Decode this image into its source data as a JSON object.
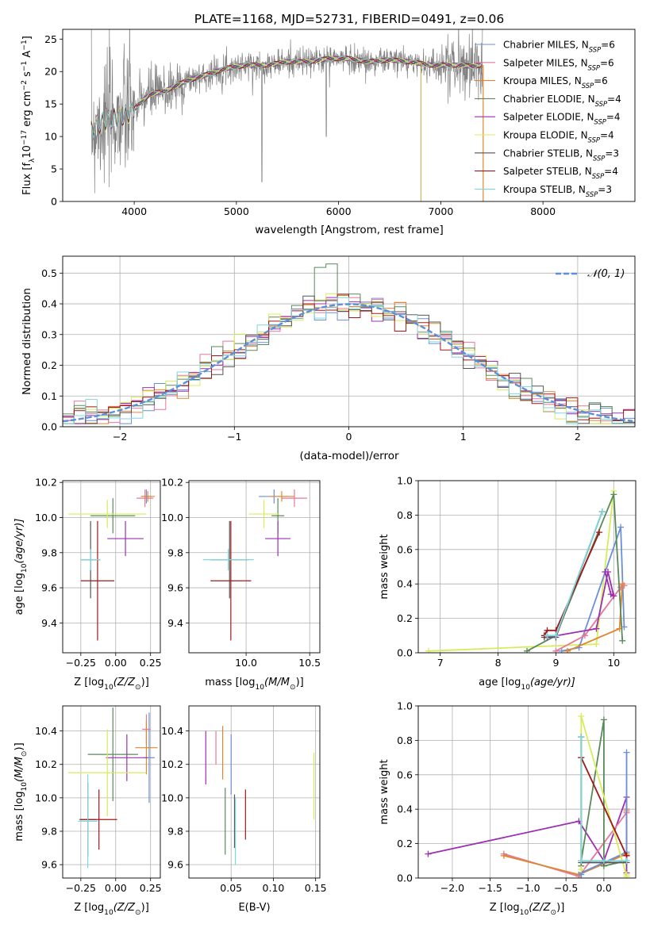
{
  "colors": {
    "Chabrier MILES": "#6a8fd8",
    "Salpeter MILES": "#e5789a",
    "Kroupa MILES": "#e0862e",
    "Chabrier ELODIE": "#5a8a5a",
    "Salpeter ELODIE": "#9b30b0",
    "Kroupa ELODIE": "#d8ec5a",
    "Chabrier STELIB": "#555555",
    "Salpeter STELIB": "#a01818",
    "Kroupa STELIB": "#7fd6dc",
    "data": "#808080",
    "gauss": "#5b8fd9",
    "axes_bg": "#ffffff",
    "grid": "#b0b0b0"
  },
  "chart_data": [
    {
      "id": "spectrum",
      "type": "line",
      "title": "PLATE=1168, MJD=52731, FIBERID=0491, z=0.06",
      "xlabel": "wavelength [Angstrom, rest frame]",
      "ylabel": "Flux [f",
      "ylabel_sub": "λ",
      "ylabel_rest": "10",
      "ylabel_sup1": "−17",
      "ylabel_tail": " erg cm",
      "ylabel_sup2": "−2",
      "ylabel_tail2": " s",
      "ylabel_sup3": "−1",
      "ylabel_tail3": " A",
      "ylabel_sup4": "−1",
      "ylabel_end": "]",
      "xlim": [
        3300,
        8900
      ],
      "ylim": [
        0,
        26.5
      ],
      "xticks": [
        4000,
        5000,
        6000,
        7000,
        8000
      ],
      "yticks": [
        0,
        5,
        10,
        15,
        20,
        25
      ],
      "grid": false,
      "legend_position": "right",
      "legend": [
        {
          "name": "Chabrier MILES",
          "n": "6"
        },
        {
          "name": "Salpeter MILES",
          "n": "6"
        },
        {
          "name": "Kroupa MILES",
          "n": "6"
        },
        {
          "name": "Chabrier ELODIE",
          "n": "4"
        },
        {
          "name": "Salpeter ELODIE",
          "n": "4"
        },
        {
          "name": "Kroupa ELODIE",
          "n": "4"
        },
        {
          "name": "Chabrier STELIB",
          "n": "3"
        },
        {
          "name": "Salpeter STELIB",
          "n": "4"
        },
        {
          "name": "Kroupa STELIB",
          "n": "3"
        }
      ],
      "legend_n_label": "N",
      "legend_n_sub": "SSP",
      "continuum": [
        [
          3580,
          11
        ],
        [
          3650,
          12
        ],
        [
          3750,
          12.5
        ],
        [
          3850,
          13
        ],
        [
          3950,
          13.5
        ],
        [
          4050,
          15
        ],
        [
          4150,
          16.5
        ],
        [
          4300,
          17
        ],
        [
          4500,
          18.5
        ],
        [
          4700,
          19.5
        ],
        [
          4900,
          20.5
        ],
        [
          5100,
          21
        ],
        [
          5300,
          21
        ],
        [
          5500,
          21.5
        ],
        [
          5700,
          21.5
        ],
        [
          5900,
          22
        ],
        [
          6100,
          22
        ],
        [
          6300,
          21.5
        ],
        [
          6500,
          21.8
        ],
        [
          6700,
          21.5
        ],
        [
          6900,
          21
        ],
        [
          7050,
          21
        ],
        [
          7200,
          21
        ],
        [
          7300,
          20.8
        ],
        [
          7400,
          21
        ]
      ]
    },
    {
      "id": "residuals",
      "type": "line",
      "xlabel": "(data-model)/error",
      "ylabel": "Normed distribution",
      "xlim": [
        -2.5,
        2.5
      ],
      "ylim": [
        0,
        0.555
      ],
      "xticks": [
        -2,
        -1,
        0,
        1,
        2
      ],
      "xtick_labels": [
        "−2",
        "−1",
        "0",
        "1",
        "2"
      ],
      "yticks": [
        0.0,
        0.1,
        0.2,
        0.3,
        0.4,
        0.5
      ],
      "ytick_labels": [
        "0.0",
        "0.1",
        "0.2",
        "0.3",
        "0.4",
        "0.5"
      ],
      "grid": true,
      "legend_label": "𝒩(0, 1)",
      "legend_position": "top-right",
      "bin_width": 0.1,
      "gaussian": {
        "mean": 0,
        "sigma": 1
      }
    },
    {
      "id": "age_vs_Z",
      "type": "scatter",
      "xlabel": "Z [log",
      "xlabel_sub": "10",
      "xlabel_rest": "(Z/Z",
      "xlabel_sub2": "⊙",
      "xlabel_end": ")]",
      "ylabel": "age  [log",
      "ylabel_sub": "10",
      "ylabel_rest": "(age/yr)]",
      "xlim": [
        -0.38,
        0.32
      ],
      "ylim": [
        9.23,
        10.21
      ],
      "xticks": [
        -0.25,
        0.0,
        0.25
      ],
      "xtick_labels": [
        "−0.25",
        "0.00",
        "0.25"
      ],
      "yticks": [
        9.4,
        9.6,
        9.8,
        10.0,
        10.2
      ],
      "ytick_labels": [
        "9.4",
        "9.6",
        "9.8",
        "10.0",
        "10.2"
      ],
      "grid": true,
      "points": [
        {
          "model": "Chabrier MILES",
          "x": 0.22,
          "xerr": 0.03,
          "y": 10.12,
          "yerr": 0.04
        },
        {
          "model": "Salpeter MILES",
          "x": 0.21,
          "xerr": 0.06,
          "y": 10.11,
          "yerr": 0.05
        },
        {
          "model": "Kroupa MILES",
          "x": 0.23,
          "xerr": 0.05,
          "y": 10.12,
          "yerr": 0.03
        },
        {
          "model": "Chabrier ELODIE",
          "x": -0.02,
          "xerr": 0.16,
          "y": 10.01,
          "yerr": 0.1
        },
        {
          "model": "Salpeter ELODIE",
          "x": 0.07,
          "xerr": 0.13,
          "y": 9.88,
          "yerr": 0.1
        },
        {
          "model": "Kroupa ELODIE",
          "x": -0.06,
          "xerr": 0.28,
          "y": 10.02,
          "yerr": 0.08
        },
        {
          "model": "Chabrier STELIB",
          "x": -0.18,
          "xerr": 0.07,
          "y": 9.76,
          "yerr": 0.22
        },
        {
          "model": "Salpeter STELIB",
          "x": -0.13,
          "xerr": 0.12,
          "y": 9.64,
          "yerr": 0.34
        },
        {
          "model": "Kroupa STELIB",
          "x": -0.18,
          "xerr": 0.07,
          "y": 9.76,
          "yerr": 0.06
        }
      ]
    },
    {
      "id": "age_vs_mass",
      "type": "scatter",
      "xlabel": "mass [log",
      "xlabel_sub": "10",
      "xlabel_rest": "(M/M",
      "xlabel_sub2": "⊙",
      "xlabel_end": ")]",
      "xlim": [
        9.55,
        10.58
      ],
      "ylim": [
        9.23,
        10.21
      ],
      "xticks": [
        10.0,
        10.5
      ],
      "xtick_labels": [
        "10.0",
        "10.5"
      ],
      "yticks": [
        9.4,
        9.6,
        9.8,
        10.0,
        10.2
      ],
      "ytick_labels": [
        "9.4",
        "9.6",
        "9.8",
        "10.0",
        "10.2"
      ],
      "grid": true,
      "points": [
        {
          "model": "Chabrier MILES",
          "x": 10.22,
          "xerr": 0.12,
          "y": 10.12,
          "yerr": 0.04
        },
        {
          "model": "Salpeter MILES",
          "x": 10.38,
          "xerr": 0.1,
          "y": 10.11,
          "yerr": 0.05
        },
        {
          "model": "Kroupa MILES",
          "x": 10.28,
          "xerr": 0.1,
          "y": 10.12,
          "yerr": 0.03
        },
        {
          "model": "Chabrier ELODIE",
          "x": 10.25,
          "xerr": 0.05,
          "y": 10.01,
          "yerr": 0.1
        },
        {
          "model": "Salpeter ELODIE",
          "x": 10.25,
          "xerr": 0.1,
          "y": 9.88,
          "yerr": 0.1
        },
        {
          "model": "Kroupa ELODIE",
          "x": 10.14,
          "xerr": 0.12,
          "y": 10.02,
          "yerr": 0.08
        },
        {
          "model": "Chabrier STELIB",
          "x": 9.87,
          "xerr": 0.15,
          "y": 9.76,
          "yerr": 0.22
        },
        {
          "model": "Salpeter STELIB",
          "x": 9.88,
          "xerr": 0.16,
          "y": 9.64,
          "yerr": 0.34
        },
        {
          "model": "Kroupa STELIB",
          "x": 9.86,
          "xerr": 0.2,
          "y": 9.76,
          "yerr": 0.06
        }
      ]
    },
    {
      "id": "weight_vs_age",
      "type": "line",
      "xlabel": "age  [log",
      "xlabel_sub": "10",
      "xlabel_rest": "(age/yr)]",
      "ylabel": "mass weight",
      "xlim": [
        6.62,
        10.38
      ],
      "ylim": [
        0,
        1.0
      ],
      "xticks": [
        7,
        8,
        9,
        10
      ],
      "xtick_labels": [
        "7",
        "8",
        "9",
        "10"
      ],
      "yticks": [
        0.0,
        0.2,
        0.4,
        0.6,
        0.8,
        1.0
      ],
      "ytick_labels": [
        "0.0",
        "0.2",
        "0.4",
        "0.6",
        "0.8",
        "1.0"
      ],
      "grid": true,
      "series": [
        {
          "model": "Kroupa ELODIE",
          "x": [
            6.8,
            9.7,
            10.0
          ],
          "y": [
            0.01,
            0.05,
            0.94
          ]
        },
        {
          "model": "Chabrier MILES",
          "x": [
            9.1,
            9.4,
            10.12,
            10.18
          ],
          "y": [
            0.01,
            0.03,
            0.73,
            0.15
          ]
        },
        {
          "model": "Salpeter MILES",
          "x": [
            9.0,
            9.5,
            10.12,
            10.18
          ],
          "y": [
            0.01,
            0.1,
            0.38,
            0.39
          ]
        },
        {
          "model": "Kroupa MILES",
          "x": [
            9.2,
            10.1,
            10.15
          ],
          "y": [
            0.01,
            0.14,
            0.4
          ]
        },
        {
          "model": "Chabrier ELODIE",
          "x": [
            8.5,
            9.0,
            10.0,
            10.15
          ],
          "y": [
            0.01,
            0.1,
            0.92,
            0.07
          ]
        },
        {
          "model": "Salpeter ELODIE",
          "x": [
            8.85,
            9.7,
            9.9,
            10.0,
            9.95,
            9.85
          ],
          "y": [
            0.09,
            0.14,
            0.47,
            0.33,
            0.34,
            0.47
          ]
        },
        {
          "model": "Chabrier STELIB",
          "x": [
            8.8,
            9.0,
            9.8
          ],
          "y": [
            0.09,
            0.09,
            0.82
          ]
        },
        {
          "model": "Salpeter STELIB",
          "x": [
            8.8,
            8.85,
            9.0,
            9.75
          ],
          "y": [
            0.1,
            0.13,
            0.13,
            0.7
          ]
        },
        {
          "model": "Kroupa STELIB",
          "x": [
            8.85,
            9.0,
            9.8
          ],
          "y": [
            0.1,
            0.1,
            0.82
          ]
        }
      ]
    },
    {
      "id": "mass_vs_Z",
      "type": "scatter",
      "xlabel": "Z [log",
      "xlabel_sub": "10",
      "xlabel_rest": "(Z/Z",
      "xlabel_sub2": "⊙",
      "xlabel_end": ")]",
      "ylabel": "mass [log",
      "ylabel_sub": "10",
      "ylabel_rest": "(M/M",
      "ylabel_sub2": "⊙",
      "ylabel_end": ")]",
      "xlim": [
        -0.38,
        0.32
      ],
      "ylim": [
        9.52,
        10.55
      ],
      "xticks": [
        -0.25,
        0.0,
        0.25
      ],
      "xtick_labels": [
        "−0.25",
        "0.00",
        "0.25"
      ],
      "yticks": [
        9.6,
        9.8,
        10.0,
        10.2,
        10.4
      ],
      "ytick_labels": [
        "9.6",
        "9.8",
        "10.0",
        "10.2",
        "10.4"
      ],
      "grid": true,
      "points": [
        {
          "model": "Chabrier MILES",
          "x": 0.24,
          "xerr": 0.04,
          "y": 10.24,
          "yerr": 0.27
        },
        {
          "model": "Salpeter MILES",
          "x": 0.22,
          "xerr": 0.03,
          "y": 10.41,
          "yerr": 0.09
        },
        {
          "model": "Kroupa MILES",
          "x": 0.22,
          "xerr": 0.08,
          "y": 10.3,
          "yerr": 0.16
        },
        {
          "model": "Chabrier ELODIE",
          "x": -0.02,
          "xerr": 0.18,
          "y": 10.26,
          "yerr": 0.28
        },
        {
          "model": "Salpeter ELODIE",
          "x": 0.08,
          "xerr": 0.15,
          "y": 10.24,
          "yerr": 0.14
        },
        {
          "model": "Kroupa ELODIE",
          "x": -0.06,
          "xerr": 0.28,
          "y": 10.15,
          "yerr": 0.26
        },
        {
          "model": "Chabrier STELIB",
          "x": -0.2,
          "xerr": 0.06,
          "y": 9.87,
          "yerr": 0.22
        },
        {
          "model": "Salpeter STELIB",
          "x": -0.12,
          "xerr": 0.13,
          "y": 9.87,
          "yerr": 0.18
        },
        {
          "model": "Kroupa STELIB",
          "x": -0.2,
          "xerr": 0.07,
          "y": 9.86,
          "yerr": 0.28
        }
      ]
    },
    {
      "id": "mass_vs_ebv",
      "type": "scatter",
      "xlabel": "E(B-V)",
      "xlim": [
        0.0,
        0.155
      ],
      "ylim": [
        9.52,
        10.55
      ],
      "xticks": [
        0.05,
        0.1,
        0.15
      ],
      "xtick_labels": [
        "0.05",
        "0.10",
        "0.15"
      ],
      "yticks": [
        9.6,
        9.8,
        10.0,
        10.2,
        10.4
      ],
      "ytick_labels": [
        "9.6",
        "9.8",
        "10.0",
        "10.2",
        "10.4"
      ],
      "grid": true,
      "points": [
        {
          "model": "Salpeter ELODIE",
          "x": 0.02,
          "y": 10.24,
          "yerr": 0.16
        },
        {
          "model": "Salpeter MILES",
          "x": 0.032,
          "y": 10.3,
          "yerr": 0.1
        },
        {
          "model": "Kroupa MILES",
          "x": 0.04,
          "y": 10.27,
          "yerr": 0.16
        },
        {
          "model": "Chabrier ELODIE",
          "x": 0.043,
          "y": 9.86,
          "yerr": 0.2
        },
        {
          "model": "Chabrier MILES",
          "x": 0.05,
          "y": 10.2,
          "yerr": 0.18
        },
        {
          "model": "Chabrier STELIB",
          "x": 0.054,
          "y": 9.86,
          "yerr": 0.16
        },
        {
          "model": "Kroupa STELIB",
          "x": 0.055,
          "y": 9.8,
          "yerr": 0.2
        },
        {
          "model": "Salpeter STELIB",
          "x": 0.067,
          "y": 9.9,
          "yerr": 0.15
        },
        {
          "model": "Kroupa ELODIE",
          "x": 0.148,
          "y": 10.07,
          "yerr": 0.2
        }
      ]
    },
    {
      "id": "weight_vs_Z",
      "type": "line",
      "xlabel": "Z [log",
      "xlabel_sub": "10",
      "xlabel_rest": "(Z/Z",
      "xlabel_sub2": "⊙",
      "xlabel_end": ")]",
      "ylabel": "mass weight",
      "xlim": [
        -2.45,
        0.42
      ],
      "ylim": [
        0,
        1.0
      ],
      "xticks": [
        -2.0,
        -1.5,
        -1.0,
        -0.5,
        0.0
      ],
      "xtick_labels": [
        "−2.0",
        "−1.5",
        "−1.0",
        "−0.5",
        "0.0"
      ],
      "yticks": [
        0.0,
        0.2,
        0.4,
        0.6,
        0.8,
        1.0
      ],
      "ytick_labels": [
        "0.0",
        "0.2",
        "0.4",
        "0.6",
        "0.8",
        "1.0"
      ],
      "grid": true,
      "series": [
        {
          "model": "Salpeter ELODIE",
          "x": [
            -2.32,
            -0.33,
            0.0,
            0.3,
            0.3
          ],
          "y": [
            0.14,
            0.33,
            0.1,
            0.47,
            0.03
          ]
        },
        {
          "model": "Salpeter MILES",
          "x": [
            -1.32,
            -0.33,
            0.3,
            0.3
          ],
          "y": [
            0.14,
            0.01,
            0.38,
            0.39
          ]
        },
        {
          "model": "Kroupa MILES",
          "x": [
            -1.32,
            -0.33,
            0.3,
            0.3
          ],
          "y": [
            0.13,
            0.02,
            0.14,
            0.4
          ]
        },
        {
          "model": "Chabrier MILES",
          "x": [
            -0.3,
            -0.3,
            0.3,
            0.3
          ],
          "y": [
            0.02,
            0.03,
            0.15,
            0.73
          ]
        },
        {
          "model": "Chabrier ELODIE",
          "x": [
            -0.3,
            -0.3,
            0.0,
            0.0,
            0.3
          ],
          "y": [
            0.07,
            0.1,
            0.92,
            0.07,
            0.1
          ]
        },
        {
          "model": "Kroupa ELODIE",
          "x": [
            -0.3,
            -0.3,
            0.3,
            0.3
          ],
          "y": [
            0.05,
            0.94,
            0.01,
            0.02
          ]
        },
        {
          "model": "Chabrier STELIB",
          "x": [
            -0.3,
            -0.3,
            0.0,
            0.3
          ],
          "y": [
            0.82,
            0.09,
            0.09,
            0.09
          ]
        },
        {
          "model": "Salpeter STELIB",
          "x": [
            -0.3,
            -0.3,
            0.3,
            0.3
          ],
          "y": [
            0.7,
            0.7,
            0.13,
            0.13
          ]
        },
        {
          "model": "Kroupa STELIB",
          "x": [
            -0.3,
            -0.3,
            0.0,
            0.3
          ],
          "y": [
            0.82,
            0.1,
            0.1,
            0.1
          ]
        }
      ]
    }
  ]
}
